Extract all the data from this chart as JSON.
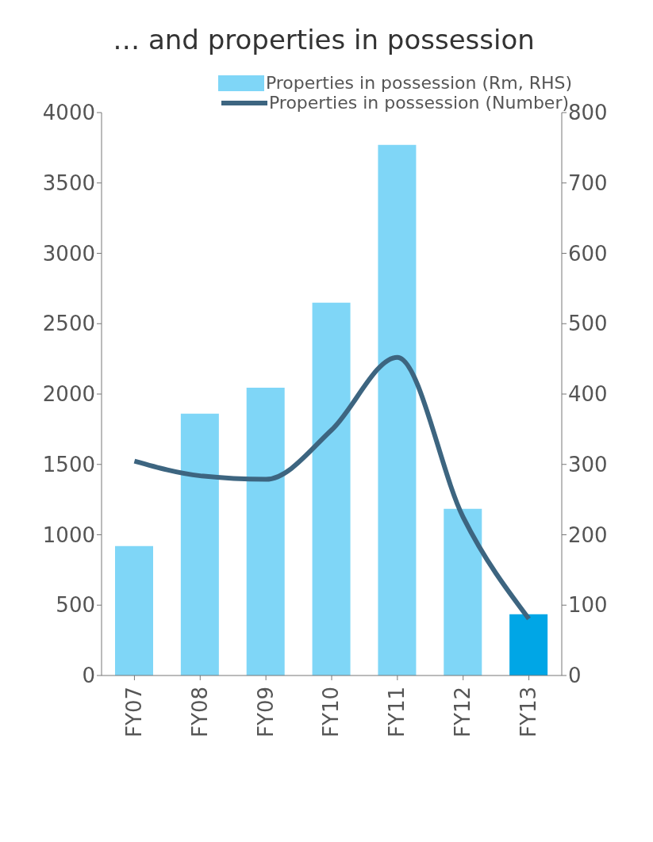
{
  "chart_data": {
    "type": "bar",
    "title": "… and properties in possession",
    "categories": [
      "FY07",
      "FY08",
      "FY09",
      "FY10",
      "FY11",
      "FY12",
      "FY13"
    ],
    "series": [
      {
        "name": "Properties in possession (Rm, RHS)",
        "axis": "y2",
        "colors": [
          "#7fd6f7",
          "#7fd6f7",
          "#7fd6f7",
          "#7fd6f7",
          "#7fd6f7",
          "#7fd6f7",
          "#00a6e6"
        ],
        "values": [
          184,
          372,
          409,
          530,
          754,
          237,
          87
        ]
      },
      {
        "name": "Properties in possession (Number)",
        "type": "line",
        "color": "#3d6580",
        "values": [
          1523,
          1419,
          1394,
          1745,
          2261,
          1125,
          403
        ]
      }
    ],
    "ylim": [
      0,
      4000
    ],
    "yticks": [
      0,
      500,
      1000,
      1500,
      2000,
      2500,
      3000,
      3500,
      4000
    ],
    "y2lim": [
      0,
      800
    ],
    "y2ticks": [
      0,
      100,
      200,
      300,
      400,
      500,
      600,
      700,
      800
    ],
    "legend": "top"
  }
}
